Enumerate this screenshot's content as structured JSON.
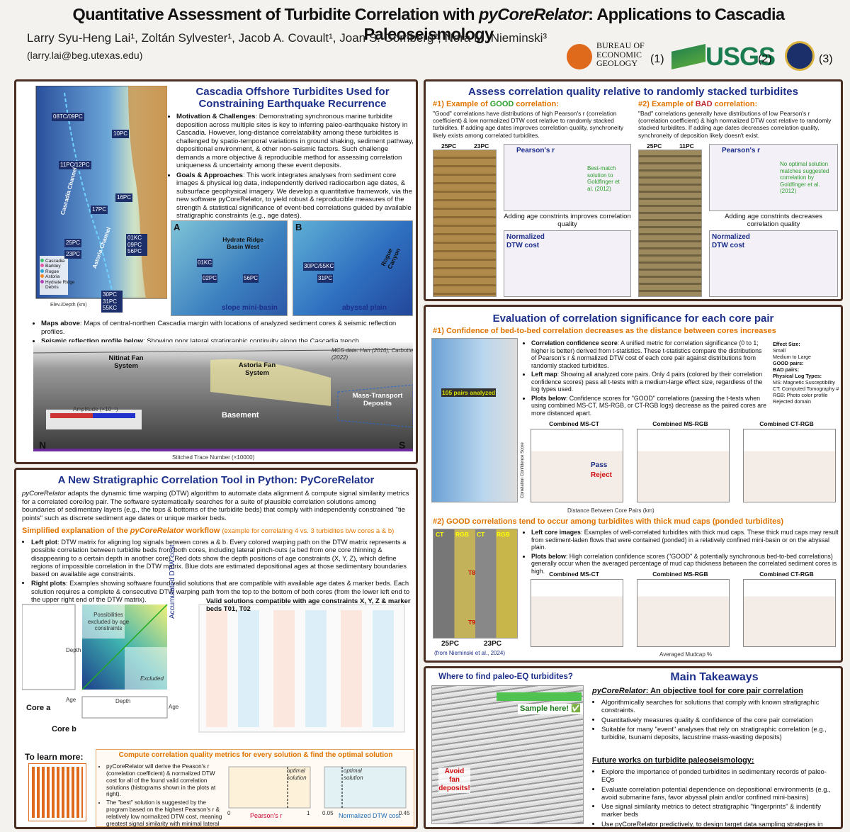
{
  "header": {
    "title_a": "Quantitative Assessment of Turbidite Correlation with ",
    "title_em": "pyCoreRelator",
    "title_b": ": Applications to Cascadia Paleoseismology",
    "authors": "Larry Syu-Heng Lai¹, Zoltán Sylvester¹, Jacob A. Covault¹, Joan S. Gomberg², Nora M. Nieminski³",
    "email": "(larry.lai@beg.utexas.edu)",
    "logos": [
      "BUREAU OF ECONOMIC GEOLOGY",
      "(1)",
      "USGS",
      "(2)",
      "(3)"
    ]
  },
  "cascadia": {
    "title": "Cascadia Offshore Turbidites Used for Constraining Earthquake Recurrence",
    "bullets": [
      {
        "label": "Motivation & Challenges",
        "text": ": Demonstrating synchronous marine turbidite deposition across multiple sites is key to inferring paleo-earthquake history in Cascadia. However, long-distance correlatability among these turbidites is challenged by spatio-temporal variations in ground shaking, sediment pathway, depositional environment, & other non-seismic factors. Such challenge demands a more objective & reproducible method for assessing correlation uniqueness & uncertainty among these event deposits."
      },
      {
        "label": "Goals & Approaches",
        "text": ": This work integrates analyses from sediment core images & physical log data, independently derived radiocarbon age dates, & subsurface geophysical imagery. We develop a quantitative framework, via the new software pyCoreRelator, to yield robust & reproducible measures of the strength & statistical significance of event-bed correlations guided by available stratigraphic constraints (e.g., age dates)."
      }
    ],
    "map_labels": [
      "08TC/09PC",
      "10PC",
      "11PC/12PC",
      "16PC",
      "17PC",
      "25PC",
      "23PC",
      "01KC 09PC 56PC",
      "30PC 31PC 55KC",
      "Cascadia Channel",
      "Astoria Channel",
      "Elev./Depth (km)"
    ],
    "legend": [
      "Cascadia",
      "Barkley",
      "Rogue",
      "Astoria",
      "Hydrate Ridge",
      "Debris"
    ],
    "inset_a": [
      "A",
      "Hydrate Ridge Basin West",
      "01KC",
      "02PC",
      "56PC",
      "slope mini-basin"
    ],
    "inset_b": [
      "B",
      "Rogue Canyon",
      "30PC/55KC",
      "31PC",
      "abyssal plain"
    ],
    "captions": [
      {
        "label": "Maps above",
        "text": ": Maps of central-northen Cascadia margin with locations of analyzed sediment cores & seismic reflection profiles."
      },
      {
        "label": "Seismic reflection profile below",
        "text": ": Showing poor lateral stratigraphic continuity along the Cascadia trench."
      }
    ],
    "seismic_labels": [
      "Nitinat Fan System",
      "Astoria Fan System",
      "Mass-Transport Deposits",
      "Basement",
      "N",
      "S",
      "MCS data: Han (2016); Carbotte (2022)",
      "Stitched Trace Number (×10000)",
      "Amplitude (×10⁻¹)"
    ]
  },
  "tool": {
    "title": "A New Stratigraphic Correlation Tool in Python: PyCoreRelator",
    "intro_em": "pyCoreRelator",
    "intro": " adapts the dynamic time warping (DTW) algorithm to automate data alignment & compute signal similarity metrics for a correlated core/log pair. The software systematically searches for a suite of plausible correlation solutions among boundaries of sedimentary layers (e.g., the tops & bottoms of the turbidite beds) that comply with independently constrained \"tie points\" such as discrete sediment age dates or unique marker beds.",
    "sub_a": "Simplified explanation of the ",
    "sub_em": "pyCoreRelator",
    "sub_b": " workflow",
    "sub_note": "(example for correlating 4 vs. 3 turbidites b/w cores a & b)",
    "bullets": [
      {
        "label": "Left plot",
        "text": ": DTW matrix for aligning log signals between cores a & b. Every colored warping path on the DTW matrix represents a possible correlation between turbidite beds from both cores, including lateral pinch-outs (a bed from one core thinning & disappearing to a certain depth in another core). Red dots show the depth positions of age constraints (X, Y, Z), which define regions of impossible correlation in the DTW matrix. Blue dots are estimated depositional ages at those sedimentary boundaries based on available age constraints."
      },
      {
        "label": "Right plots",
        "text": ": Examples showing software found valid solutions that are compatible with available age dates & marker beds. Each solution requires a complete & consecutive DTW warping path from the top to the bottom of both cores (from the lower left end to the upper right end of the DTW matrix)."
      }
    ],
    "fig_labels": [
      "Possibilities excluded by age constraints",
      "Accumulated DTW cost",
      "Excluded",
      "Core a",
      "Core b",
      "Depth",
      "Age",
      "Depth",
      "Age"
    ],
    "solutions_label": "Valid solutions compatible with age constraints X, Y, Z & marker beds T01, T02",
    "compute_title": "Compute correlation quality metrics for every solution & find the optimal solution",
    "compute_bullets": [
      "pyCoreRelator will derive the Peason's r (correlation coefficient) & normalized DTW cost for all of the found valid correlation solutions (histograms shown in the plots at right).",
      "The \"best\" solution is suggested by the program based on the highest Pearson's r & relatively low normalized DTW cost, meaning greatest signal similarity with minimal lateral pinch-outs."
    ],
    "hist_labels": [
      "Pearson's r",
      "Normalized DTW cost",
      "optimal solution",
      "optimal solution"
    ],
    "hist_ticks": [
      "0",
      "1",
      "0.05",
      "0.45"
    ],
    "learn": "To learn more:"
  },
  "assess": {
    "title": "Assess correlation quality relative to randomly stacked turbidites",
    "good_a": "#1) Example of ",
    "good_em": "GOOD",
    "good_b": " correlation:",
    "good_text": "\"Good\" correlations have distributions of high Pearson's r (correlation coefficient) & low normalized DTW cost relative to randomly stacked turbidites. If adding age dates improves correlation quality, synchroneity likely exists among correlated turbidites.",
    "bad_a": "#2) Example of ",
    "bad_em": "BAD",
    "bad_b": " correlation:",
    "bad_text": "\"Bad\" correlations generally have distributions of low Pearson's r (correlation coefficient) & high normalized DTW cost relative to randomly stacked turbidites. If adding age dates decreases correlation quality, synchroneity of deposition likely doesn't exist.",
    "good_cores": [
      "25PC",
      "23PC"
    ],
    "bad_cores": [
      "25PC",
      "11PC"
    ],
    "panel_labels": [
      "Pearson's r",
      "Normalized DTW cost",
      "Pearson's r",
      "Normalized DTW cost"
    ],
    "good_note": "Adding age constrints improves correlation quality",
    "bad_note": "Adding age constrints decreases correlation quality",
    "good_best": "Best-match solution to Goldfinger et al. (2012)",
    "bad_best": "No optimal solution matches suggested correlation by Goldfinger et al. (2012)"
  },
  "evaluation": {
    "title": "Evaluation of correlation significance for each core pair",
    "h1": "#1) Confidence of bed-to-bed correlation decreases as the distance between cores increases",
    "bullets1": [
      {
        "label": "Correlation confidence score",
        "text": ": A unified metric for correlation significance (0 to 1; higher is better) derived from t-statistics. These t-statistics compare the distributions of Pearson's r & normalized DTW cost of each core pair against distributions from randomly stacked turbidites."
      },
      {
        "label": "Left map",
        "text": ": Showing all analyzed core pairs. Only 4 pairs (colored by their correlation confidence scores) pass all t-tests with a medium-large effect size, regardless of the log types used."
      },
      {
        "label": "Plots below",
        "text": ": Confidence scores for \"GOOD\" correlations (passing the t-tests when using combined MS-CT, MS-RGB, or CT-RGB logs) decrease as the paired cores are more distanced apart."
      }
    ],
    "map_label": "105 pairs analyzed",
    "legend": [
      "Effect Size:",
      "Small",
      "Medium to Large",
      "GOOD pairs:",
      "BAD pairs:",
      "Physical Log Types:",
      "MS: Magnetic Susceptibility",
      "CT: Computed Tomography #",
      "RGB: Photo color profile",
      "Rejected domain"
    ],
    "plot_titles": [
      "Combined MS-CT",
      "Combined MS-RGB",
      "Combined CT-RGB"
    ],
    "pass": "Pass",
    "reject": "Reject",
    "xlabel1": "Distance Between Core Pairs (km)",
    "ylabel": "Correlation Confidence Score",
    "h2": "#2) GOOD correlations tend to occur among turbidites with thick mud caps (ponded turbidites)",
    "bullets2": [
      {
        "label": "Left core images",
        "text": ": Examples of well-correlated turbidites with thick mud caps. These thick mud caps may result from sediment-laden flows that were contained (ponded) in a relatively confined mini-basin or on the abyssal plain."
      },
      {
        "label": "Plots below",
        "text": ": High correlation confidence scores (\"GOOD\" & potentially synchronous bed-to-bed correlations) generally occur when the averaged percentage of mud cap thickness between the correlated sediment cores is high."
      }
    ],
    "core_labels": [
      "CT",
      "RGB",
      "CT",
      "RGB",
      "T8",
      "T9",
      "25PC",
      "23PC",
      "(from Nieminski et al., 2024)"
    ],
    "xlabel2": "Averaged Mudcap %"
  },
  "takeaways": {
    "where": "Where to find paleo-EQ turbidites?",
    "sample": "Sample here! ✅",
    "avoid": "Avoid fan deposits!",
    "title": "Main Takeaways",
    "sub_em": "pyCoreRelator",
    "sub": ": An objective tool for core pair correlation",
    "list1": [
      "Algorithmically searches for solutions that comply with known stratigraphic constraints.",
      "Quantitatively measures quality & confidence of the core pair correlation",
      "Suitable for many \"event\" analyses that rely on stratigraphic correlation (e.g., turbidite, tsunami deposits, lacustrine mass-wasting deposits)"
    ],
    "future": "Future works on turbidite paleoseismology:",
    "list2": [
      "Explore the importance of ponded turbidites in sedimentary records of paleo-EQs",
      "Evaluate correlation potential dependence on depositional environments (e.g., avoid submarine fans, favor abyssal plain and/or confined mini-basins)",
      "Use signal similarity metrics to detect stratigraphic \"fingerprints\" & indentify marker beds",
      "Use pyCoreRelator predictively, to design target data sampling strategies in future"
    ]
  }
}
